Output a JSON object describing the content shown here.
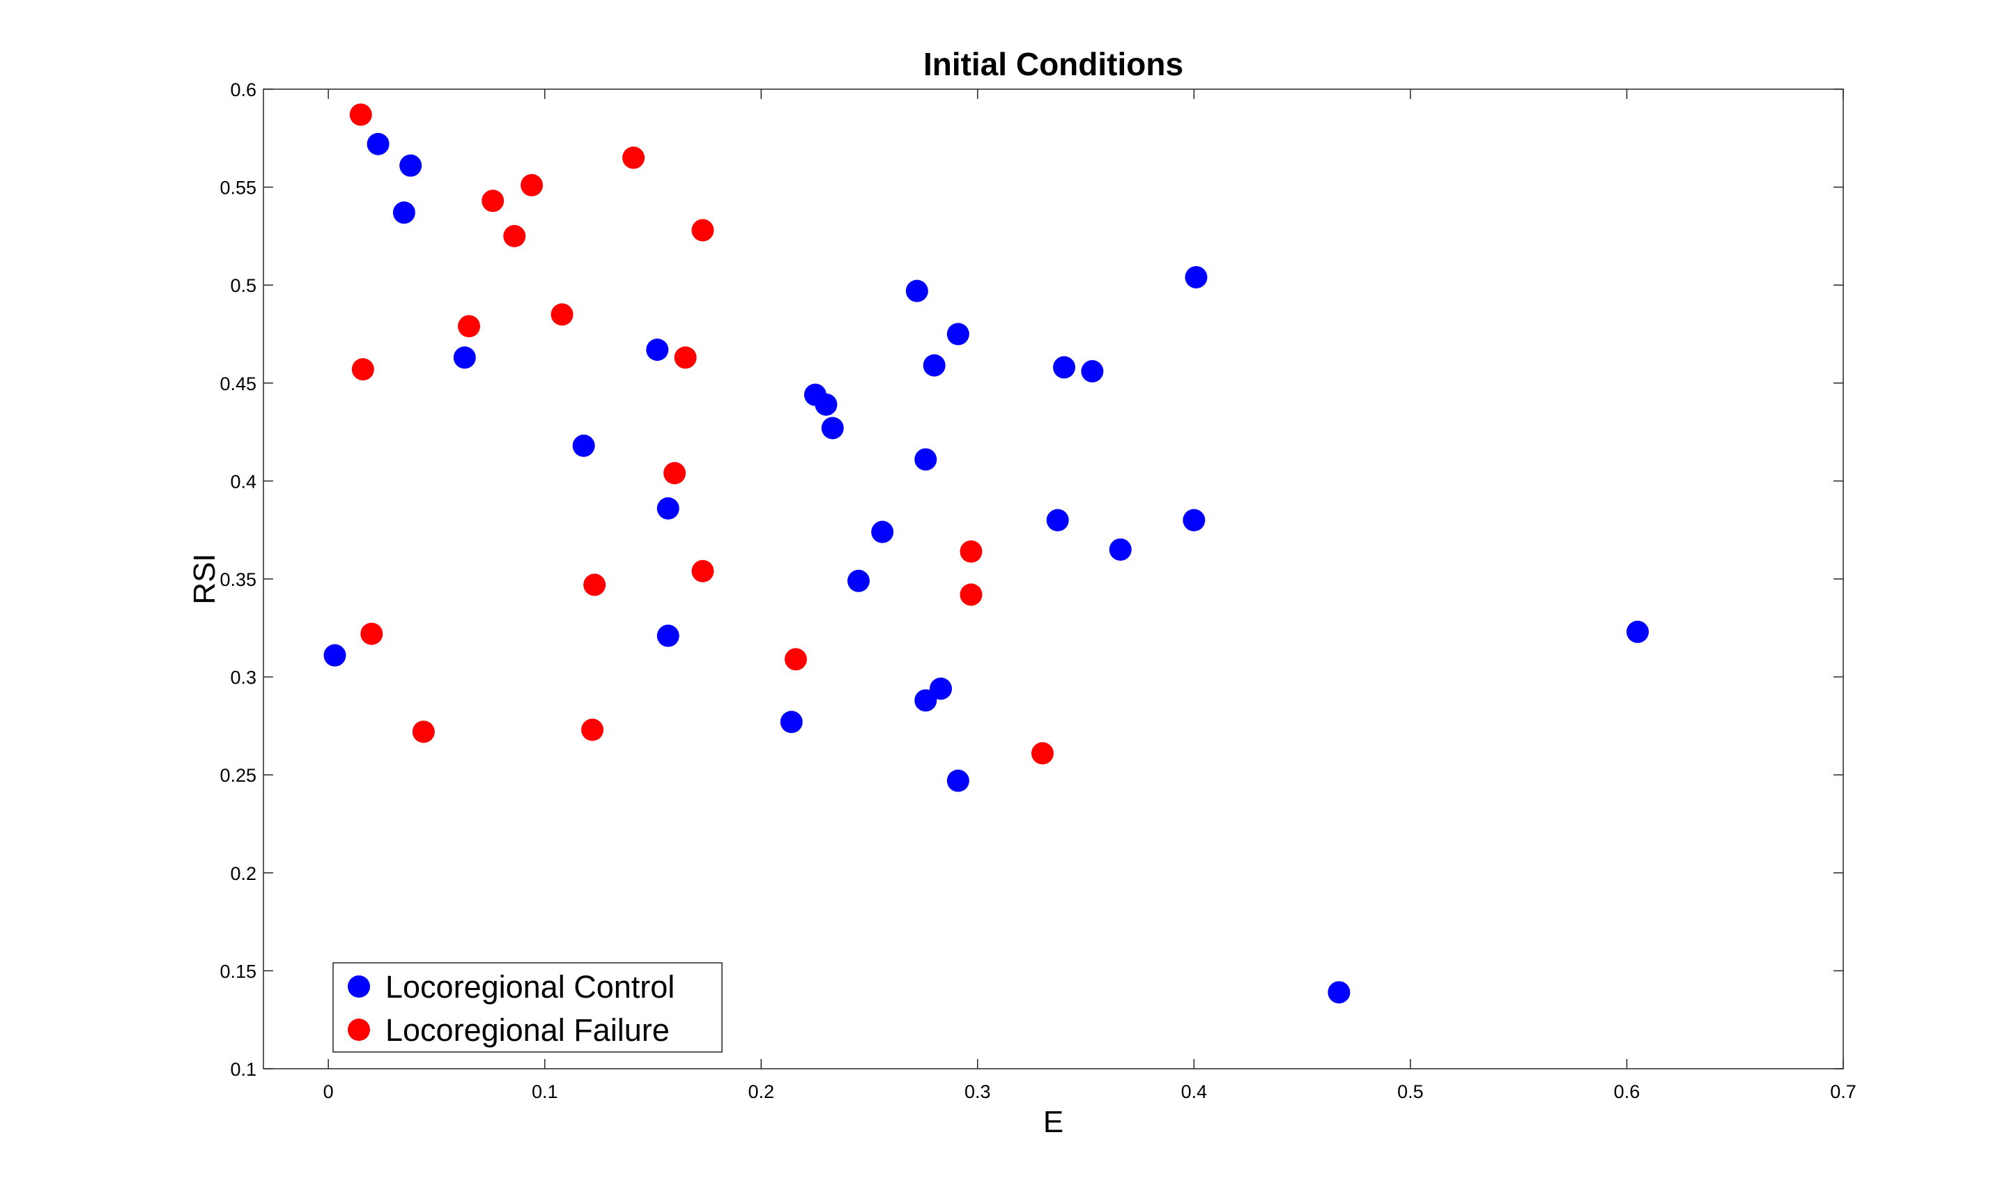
{
  "chart_data": {
    "type": "scatter",
    "title": "Initial Conditions",
    "xlabel": "E",
    "ylabel": "RSI",
    "xlim": [
      -0.03,
      0.7
    ],
    "ylim": [
      0.1,
      0.6
    ],
    "xticks": [
      "0",
      "0.1",
      "0.2",
      "0.3",
      "0.4",
      "0.5",
      "0.6",
      "0.7"
    ],
    "yticks": [
      "0.1",
      "0.15",
      "0.2",
      "0.25",
      "0.3",
      "0.35",
      "0.4",
      "0.45",
      "0.5",
      "0.55",
      "0.6"
    ],
    "legend_position": "bottom-left",
    "series": [
      {
        "name": "Locoregional Control",
        "color": "#0000ff",
        "points": [
          [
            0.023,
            0.572
          ],
          [
            0.038,
            0.561
          ],
          [
            0.035,
            0.537
          ],
          [
            0.063,
            0.463
          ],
          [
            0.003,
            0.311
          ],
          [
            0.118,
            0.418
          ],
          [
            0.152,
            0.467
          ],
          [
            0.157,
            0.386
          ],
          [
            0.157,
            0.321
          ],
          [
            0.214,
            0.277
          ],
          [
            0.225,
            0.444
          ],
          [
            0.23,
            0.439
          ],
          [
            0.233,
            0.427
          ],
          [
            0.245,
            0.349
          ],
          [
            0.256,
            0.374
          ],
          [
            0.272,
            0.497
          ],
          [
            0.276,
            0.411
          ],
          [
            0.28,
            0.459
          ],
          [
            0.291,
            0.475
          ],
          [
            0.276,
            0.288
          ],
          [
            0.283,
            0.294
          ],
          [
            0.291,
            0.247
          ],
          [
            0.337,
            0.38
          ],
          [
            0.34,
            0.458
          ],
          [
            0.353,
            0.456
          ],
          [
            0.366,
            0.365
          ],
          [
            0.401,
            0.504
          ],
          [
            0.4,
            0.38
          ],
          [
            0.467,
            0.139
          ],
          [
            0.605,
            0.323
          ]
        ]
      },
      {
        "name": "Locoregional Failure",
        "color": "#ff0000",
        "points": [
          [
            0.015,
            0.587
          ],
          [
            0.016,
            0.457
          ],
          [
            0.02,
            0.322
          ],
          [
            0.044,
            0.272
          ],
          [
            0.065,
            0.479
          ],
          [
            0.076,
            0.543
          ],
          [
            0.086,
            0.525
          ],
          [
            0.094,
            0.551
          ],
          [
            0.108,
            0.485
          ],
          [
            0.123,
            0.347
          ],
          [
            0.122,
            0.273
          ],
          [
            0.141,
            0.565
          ],
          [
            0.16,
            0.404
          ],
          [
            0.165,
            0.463
          ],
          [
            0.173,
            0.528
          ],
          [
            0.173,
            0.354
          ],
          [
            0.216,
            0.309
          ],
          [
            0.297,
            0.364
          ],
          [
            0.297,
            0.342
          ],
          [
            0.33,
            0.261
          ]
        ]
      }
    ]
  }
}
